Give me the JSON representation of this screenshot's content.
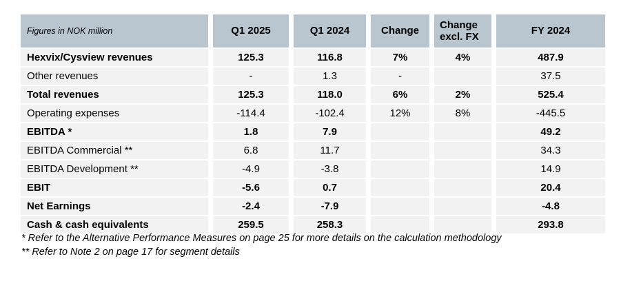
{
  "table": {
    "corner_label": "Figures in NOK million",
    "columns": [
      {
        "label": "Q1 2025"
      },
      {
        "label": "Q1 2024"
      },
      {
        "label": "Change"
      },
      {
        "label": "Change excl. FX"
      },
      {
        "label": "FY 2024"
      }
    ],
    "rows": [
      {
        "label": "Hexvix/Cysview revenues",
        "bold": true,
        "values": [
          "125.3",
          "116.8",
          "7%",
          "4%",
          "487.9"
        ]
      },
      {
        "label": "Other revenues",
        "bold": false,
        "values": [
          "-",
          "1.3",
          "-",
          "",
          "37.5"
        ]
      },
      {
        "label": "Total revenues",
        "bold": true,
        "values": [
          "125.3",
          "118.0",
          "6%",
          "2%",
          "525.4"
        ]
      },
      {
        "label": "Operating expenses",
        "bold": false,
        "values": [
          "-114.4",
          "-102.4",
          "12%",
          "8%",
          "-445.5"
        ]
      },
      {
        "label": "EBITDA *",
        "bold": true,
        "values": [
          "1.8",
          "7.9",
          "",
          "",
          "49.2"
        ]
      },
      {
        "label": "EBITDA Commercial **",
        "bold": false,
        "values": [
          "6.8",
          "11.7",
          "",
          "",
          "34.3"
        ]
      },
      {
        "label": "EBITDA Development **",
        "bold": false,
        "values": [
          "-4.9",
          "-3.8",
          "",
          "",
          "14.9"
        ]
      },
      {
        "label": "EBIT",
        "bold": true,
        "values": [
          "-5.6",
          "0.7",
          "",
          "",
          "20.4"
        ]
      },
      {
        "label": "Net Earnings",
        "bold": true,
        "values": [
          "-2.4",
          "-7.9",
          "",
          "",
          "-4.8"
        ]
      },
      {
        "label": "Cash & cash equivalents",
        "bold": true,
        "values": [
          "259.5",
          "258.3",
          "",
          "",
          "293.8"
        ]
      }
    ]
  },
  "footnotes": [
    "* Refer to the Alternative Performance Measures on page 25 for more details on the calculation methodology",
    "** Refer to Note 2 on page 17 for segment details"
  ],
  "colors": {
    "header_bg": "#b9c6d0",
    "row_bg": "#f2f2f2",
    "text": "#000000",
    "page_bg": "#ffffff"
  }
}
